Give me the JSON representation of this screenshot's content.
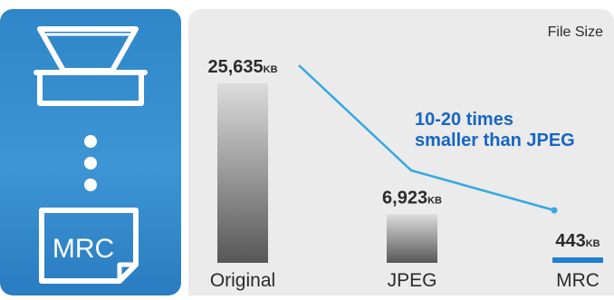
{
  "chart_data": {
    "type": "bar",
    "title": "File Size",
    "unit": "KB",
    "categories": [
      "Original",
      "JPEG",
      "MRC"
    ],
    "values": [
      25635,
      6923,
      443
    ],
    "value_labels": [
      "25,635",
      "6,923",
      "443"
    ],
    "annotation": [
      "10-20 times",
      "smaller than JPEG"
    ],
    "colors": {
      "bar_top_light": "#d9d9d9",
      "bar_bottom_dark": "#5a5a5a",
      "mrc_bar": "#1f7fd1",
      "trend_line": "#35a9e1",
      "annotation_text": "#1766c2",
      "label_text": "#2b2b2b"
    }
  },
  "left_panel": {
    "scanner_icon": "scanner-icon",
    "dots_icon": "vertical-ellipsis-icon",
    "document_label": "MRC"
  }
}
